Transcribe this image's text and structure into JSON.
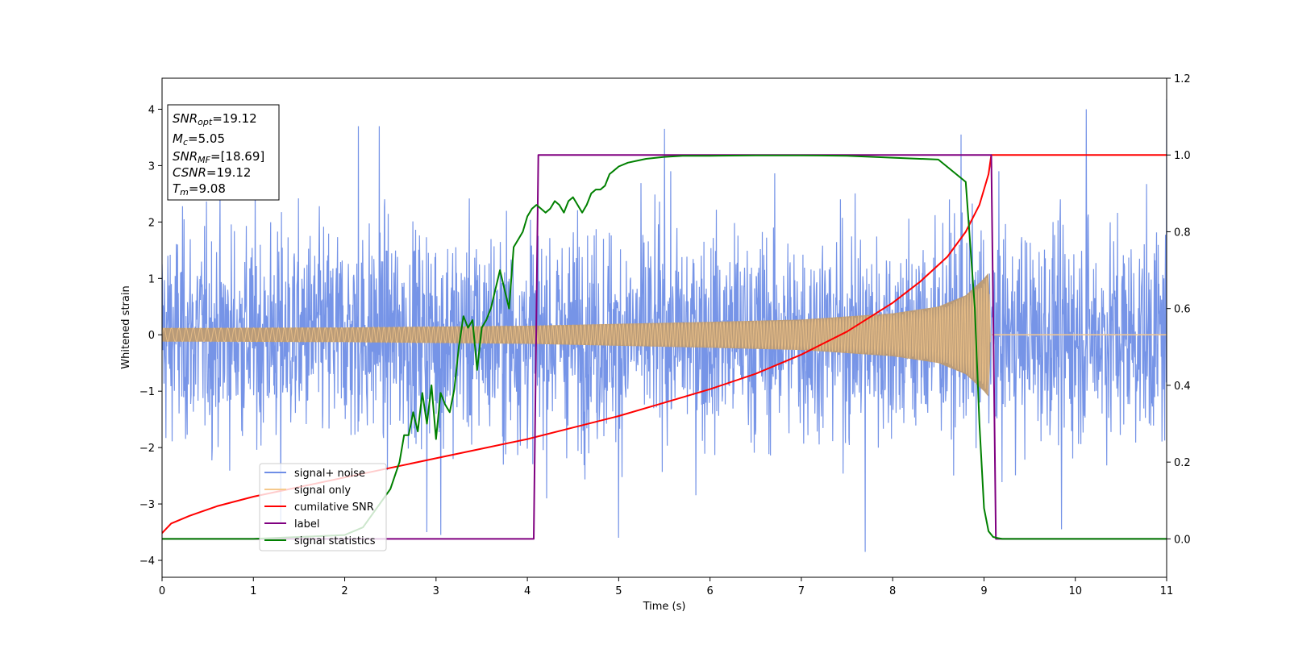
{
  "chart_data": {
    "type": "line",
    "xlabel": "Time (s)",
    "ylabel": "Whitened strain",
    "xlim": [
      0,
      11
    ],
    "ylim_left": [
      -4.3,
      4.55
    ],
    "ylim_right": [
      -0.1,
      1.2
    ],
    "x_ticks": [
      0,
      1,
      2,
      3,
      4,
      5,
      6,
      7,
      8,
      9,
      10,
      11
    ],
    "y_ticks_left": [
      4,
      3,
      2,
      1,
      0,
      -1,
      -2,
      -3,
      -4
    ],
    "y_ticks_right": [
      1.2,
      1.0,
      0.8,
      0.6,
      0.4,
      0.2,
      0.0
    ],
    "x_tick_labels": [
      "0",
      "1",
      "2",
      "3",
      "4",
      "5",
      "6",
      "7",
      "8",
      "9",
      "10",
      "11"
    ],
    "y_tick_labels_left": [
      "4",
      "3",
      "2",
      "1",
      "0",
      "−1",
      "−2",
      "−3",
      "−4"
    ],
    "y_tick_labels_right": [
      "1.2",
      "1.0",
      "0.8",
      "0.6",
      "0.4",
      "0.2",
      "0.0"
    ],
    "annotation_box": [
      {
        "key": "SNR",
        "sub": "opt",
        "value": "=19.12"
      },
      {
        "key": "M",
        "sub": "c",
        "value": "=5.05"
      },
      {
        "key": "SNR",
        "sub": "MF",
        "value": "=[18.69]"
      },
      {
        "key": "CSNR",
        "sub": "",
        "value": "=19.12"
      },
      {
        "key": "T",
        "sub": "m",
        "value": "=9.08"
      }
    ],
    "legend": {
      "placement": "lower-left",
      "entries": [
        {
          "label": "signal+ noise",
          "color": "#6f8ee6"
        },
        {
          "label": "signal only",
          "color": "#f6c98c"
        },
        {
          "label": "cumilative SNR",
          "color": "#ff0000"
        },
        {
          "label": "label",
          "color": "#800080"
        },
        {
          "label": "signal statistics",
          "color": "#008000"
        }
      ]
    },
    "series": [
      {
        "name": "signal+ noise",
        "axis": "left",
        "color": "#6f8ee6",
        "note": "dense noise, roughly within ±2.5 with spikes",
        "spikes": [
          [
            2.15,
            3.7
          ],
          [
            2.38,
            3.7
          ],
          [
            5.5,
            3.65
          ],
          [
            8.75,
            3.55
          ],
          [
            10.12,
            4.0
          ],
          [
            11.0,
            4.18
          ],
          [
            7.7,
            -3.85
          ],
          [
            5.0,
            -3.6
          ],
          [
            3.05,
            -3.55
          ],
          [
            2.9,
            -3.5
          ],
          [
            9.85,
            -3.45
          ],
          [
            1.3,
            -3.35
          ]
        ]
      },
      {
        "name": "signal only",
        "axis": "left",
        "color": "#f6c98c",
        "envelope": [
          [
            0,
            0.12
          ],
          [
            2,
            0.13
          ],
          [
            4,
            0.16
          ],
          [
            6,
            0.23
          ],
          [
            7,
            0.27
          ],
          [
            8,
            0.38
          ],
          [
            8.5,
            0.5
          ],
          [
            8.8,
            0.7
          ],
          [
            9.0,
            1.0
          ],
          [
            9.05,
            1.1
          ],
          [
            9.08,
            0
          ],
          [
            11,
            0
          ]
        ]
      },
      {
        "name": "cumilative SNR",
        "axis": "right",
        "color": "#ff0000",
        "x": [
          0,
          0.1,
          0.3,
          0.6,
          1.0,
          1.5,
          2.0,
          2.5,
          3.0,
          3.5,
          4.0,
          4.5,
          5.0,
          5.5,
          6.0,
          6.5,
          7.0,
          7.5,
          8.0,
          8.3,
          8.6,
          8.8,
          8.95,
          9.05,
          9.08,
          11.0
        ],
        "y": [
          0.015,
          0.04,
          0.06,
          0.085,
          0.11,
          0.135,
          0.16,
          0.185,
          0.21,
          0.235,
          0.26,
          0.29,
          0.32,
          0.355,
          0.39,
          0.43,
          0.48,
          0.54,
          0.615,
          0.67,
          0.735,
          0.8,
          0.87,
          0.95,
          1.0,
          1.0
        ]
      },
      {
        "name": "label",
        "axis": "right",
        "color": "#800080",
        "x": [
          0,
          4.07,
          4.12,
          9.08,
          9.13,
          11.0
        ],
        "y": [
          0,
          0,
          1.0,
          1.0,
          0,
          0
        ]
      },
      {
        "name": "signal statistics",
        "axis": "right",
        "color": "#008000",
        "x": [
          0,
          1.0,
          2.0,
          2.2,
          2.35,
          2.5,
          2.6,
          2.65,
          2.7,
          2.75,
          2.8,
          2.85,
          2.9,
          2.95,
          3.0,
          3.05,
          3.1,
          3.15,
          3.2,
          3.25,
          3.3,
          3.35,
          3.4,
          3.45,
          3.5,
          3.55,
          3.6,
          3.7,
          3.8,
          3.85,
          3.9,
          3.95,
          4.0,
          4.05,
          4.1,
          4.15,
          4.2,
          4.25,
          4.3,
          4.35,
          4.4,
          4.45,
          4.5,
          4.55,
          4.6,
          4.65,
          4.7,
          4.75,
          4.8,
          4.85,
          4.9,
          4.95,
          5.0,
          5.1,
          5.2,
          5.3,
          5.5,
          5.7,
          6.0,
          6.5,
          7.0,
          7.5,
          8.0,
          8.5,
          8.8,
          8.9,
          8.95,
          9.0,
          9.05,
          9.1,
          9.15,
          9.2,
          9.3,
          11.0
        ],
        "y": [
          0,
          0.0,
          0.01,
          0.03,
          0.08,
          0.13,
          0.2,
          0.27,
          0.27,
          0.33,
          0.28,
          0.38,
          0.3,
          0.4,
          0.26,
          0.38,
          0.35,
          0.33,
          0.39,
          0.5,
          0.58,
          0.55,
          0.57,
          0.44,
          0.55,
          0.57,
          0.6,
          0.7,
          0.6,
          0.76,
          0.78,
          0.8,
          0.84,
          0.86,
          0.87,
          0.86,
          0.85,
          0.86,
          0.88,
          0.87,
          0.85,
          0.88,
          0.89,
          0.87,
          0.85,
          0.87,
          0.9,
          0.91,
          0.91,
          0.92,
          0.95,
          0.96,
          0.97,
          0.98,
          0.985,
          0.99,
          0.995,
          0.998,
          0.998,
          0.999,
          0.999,
          0.998,
          0.993,
          0.988,
          0.93,
          0.6,
          0.3,
          0.08,
          0.02,
          0.005,
          0.002,
          0.0,
          0.0,
          0.0
        ]
      }
    ]
  }
}
